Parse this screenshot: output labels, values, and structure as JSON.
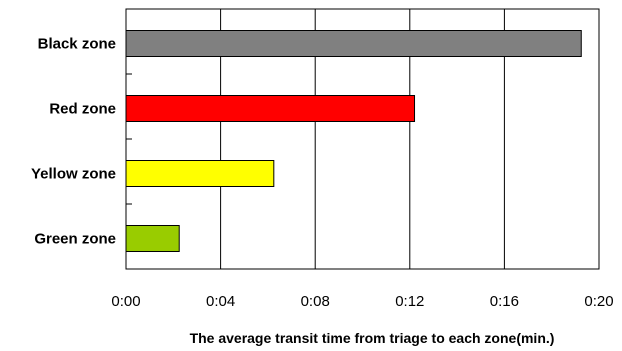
{
  "chart_data": {
    "type": "bar",
    "orientation": "horizontal",
    "categories": [
      "Black zone",
      "Red zone",
      "Yellow zone",
      "Green zone"
    ],
    "values": [
      19.25,
      12.2,
      6.25,
      2.25
    ],
    "colors": [
      "#808080",
      "#ff0000",
      "#ffff00",
      "#99cc00"
    ],
    "xlim": [
      0,
      20
    ],
    "xticks": [
      0,
      4,
      8,
      12,
      16,
      20
    ],
    "xtick_labels": [
      "0:00",
      "0:04",
      "0:08",
      "0:12",
      "0:16",
      "0:20"
    ],
    "xlabel": "The average transit time from triage to each zone(min.)",
    "ylabel": "",
    "title": "",
    "grid": "vertical",
    "legend": "none"
  }
}
